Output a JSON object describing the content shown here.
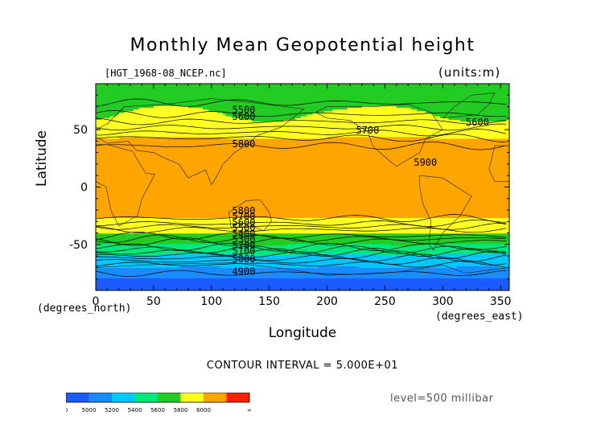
{
  "chart_data": {
    "type": "heatmap",
    "title": "Monthly Mean Geopotential height",
    "file_label": "[HGT_1968-08_NCEP.nc]",
    "units_label": "(units:m)",
    "xlabel": "Longitude",
    "ylabel": "Latitude",
    "x_unit_label": "(degrees_east)",
    "y_unit_label": "(degrees_north)",
    "xlim": [
      0,
      357.5
    ],
    "ylim": [
      -90,
      90
    ],
    "x_ticks": [
      0,
      50,
      100,
      150,
      200,
      250,
      300,
      350
    ],
    "x_tick_labels": [
      "0",
      "50",
      "100",
      "150",
      "200",
      "250",
      "300",
      "350"
    ],
    "y_ticks": [
      -50,
      0,
      50
    ],
    "y_tick_labels": [
      "-50",
      "0",
      "50"
    ],
    "contour_interval_label": "CONTOUR INTERVAL = 5.000E+01",
    "level_label": "level=500 millibar",
    "band_levels": [
      4900,
      5000,
      5200,
      5400,
      5600,
      5800,
      6000
    ],
    "band_colors": [
      "#1a5cff",
      "#1a8cff",
      "#00c8ff",
      "#00e87a",
      "#22cc22",
      "#ffff22",
      "#ffa500",
      "#ff2200"
    ],
    "colorbar_labels": [
      "0",
      "5000",
      "5200",
      "5400",
      "5600",
      "5800",
      "6000",
      "∞"
    ],
    "zonal_profile": {
      "lat": [
        90,
        80,
        70,
        60,
        50,
        40,
        30,
        20,
        10,
        0,
        -10,
        -20,
        -30,
        -40,
        -50,
        -60,
        -70,
        -80,
        -90
      ],
      "height": [
        5550,
        5530,
        5560,
        5620,
        5720,
        5830,
        5880,
        5890,
        5880,
        5880,
        5870,
        5850,
        5780,
        5600,
        5400,
        5180,
        5000,
        4900,
        4870
      ]
    },
    "contour_labels": [
      {
        "text": "5500",
        "lon": 128,
        "lat": 67
      },
      {
        "text": "5600",
        "lon": 128,
        "lat": 61
      },
      {
        "text": "5700",
        "lon": 235,
        "lat": 49
      },
      {
        "text": "5600",
        "lon": 330,
        "lat": 56
      },
      {
        "text": "5800",
        "lon": 128,
        "lat": 37
      },
      {
        "text": "5900",
        "lon": 285,
        "lat": 21
      },
      {
        "text": "5800",
        "lon": 128,
        "lat": -21
      },
      {
        "text": "5700",
        "lon": 128,
        "lat": -26
      },
      {
        "text": "5600",
        "lon": 128,
        "lat": -31
      },
      {
        "text": "5500",
        "lon": 128,
        "lat": -36
      },
      {
        "text": "5400",
        "lon": 128,
        "lat": -41
      },
      {
        "text": "5300",
        "lon": 128,
        "lat": -46
      },
      {
        "text": "5200",
        "lon": 128,
        "lat": -51
      },
      {
        "text": "5100",
        "lon": 128,
        "lat": -56
      },
      {
        "text": "5000",
        "lon": 128,
        "lat": -63
      },
      {
        "text": "4900",
        "lon": 128,
        "lat": -74
      }
    ],
    "grid": false,
    "legend": "bottom-left colorbar"
  }
}
